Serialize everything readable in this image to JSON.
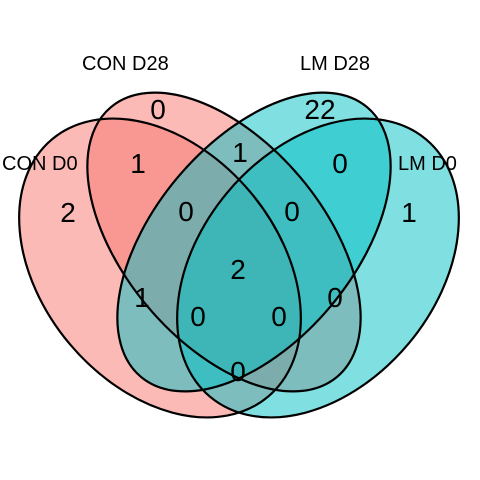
{
  "colors": {
    "con_fill": "#F8766D",
    "lm_fill": "#00BFC4",
    "outline": "#000000"
  },
  "sets": [
    {
      "id": "con_d0",
      "label": "CON D0"
    },
    {
      "id": "con_d28",
      "label": "CON D28"
    },
    {
      "id": "lm_d28",
      "label": "LM D28"
    },
    {
      "id": "lm_d0",
      "label": "LM D0"
    }
  ],
  "regions": {
    "con_d0_only": "2",
    "con_d28_only": "0",
    "lm_d28_only": "22",
    "lm_d0_only": "1",
    "con_d0_con_d28": "1",
    "con_d28_lm_d28": "1",
    "lm_d28_lm_d0": "0",
    "con_d0_lm_d28": "1",
    "con_d28_lm_d0": "0",
    "con_d0_lm_d0": "0",
    "con_d0_con_d28_lm_d28": "0",
    "con_d28_lm_d28_lm_d0": "0",
    "con_d0_lm_d28_lm_d0": "0",
    "con_d0_con_d28_lm_d0": "0",
    "all_four": "2"
  }
}
